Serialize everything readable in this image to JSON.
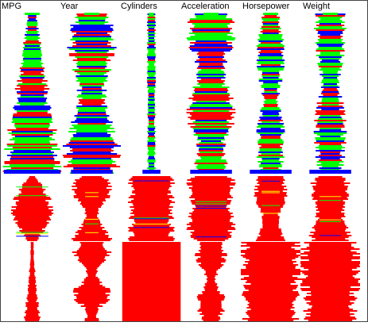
{
  "colors": {
    "background": "#ffffff",
    "frame": "#444444",
    "red": "#ff0000",
    "green": "#00ff00",
    "blue": "#0000ff",
    "yellow": "#ffff00",
    "darkred": "#cc0000"
  },
  "chart_data": {
    "type": "parallel-histogram-bands",
    "title": "",
    "dimensions": [
      "MPG",
      "Year",
      "Cylinders",
      "Acceleration",
      "Horsepower",
      "Weight"
    ],
    "band_fill_colors": [
      "#ff0000",
      "#00ff00",
      "#0000ff"
    ],
    "band_profiles": [
      {
        "name": "",
        "band": "top",
        "columns": [
          [
            0.05,
            0.95
          ],
          [
            0.55,
            0.75
          ],
          [
            0.1,
            0.12
          ],
          [
            0.55,
            0.6
          ],
          [
            0.25,
            0.3
          ],
          [
            0.28,
            0.32
          ]
        ]
      },
      {
        "name": "",
        "band": "middle",
        "columns": [
          [
            0.35,
            0.45
          ],
          [
            0.5,
            0.5
          ],
          [
            0.65,
            0.65
          ],
          [
            0.65,
            0.7
          ],
          [
            0.4,
            0.45
          ],
          [
            0.5,
            0.55
          ]
        ]
      },
      {
        "name": "",
        "band": "bottom",
        "columns": [
          [
            0.1,
            0.15
          ],
          [
            0.45,
            0.55
          ],
          [
            0.98,
            0.98
          ],
          [
            0.35,
            0.4
          ],
          [
            0.9,
            0.95
          ],
          [
            0.9,
            0.95
          ]
        ]
      }
    ],
    "grid": false,
    "legend": "none"
  }
}
